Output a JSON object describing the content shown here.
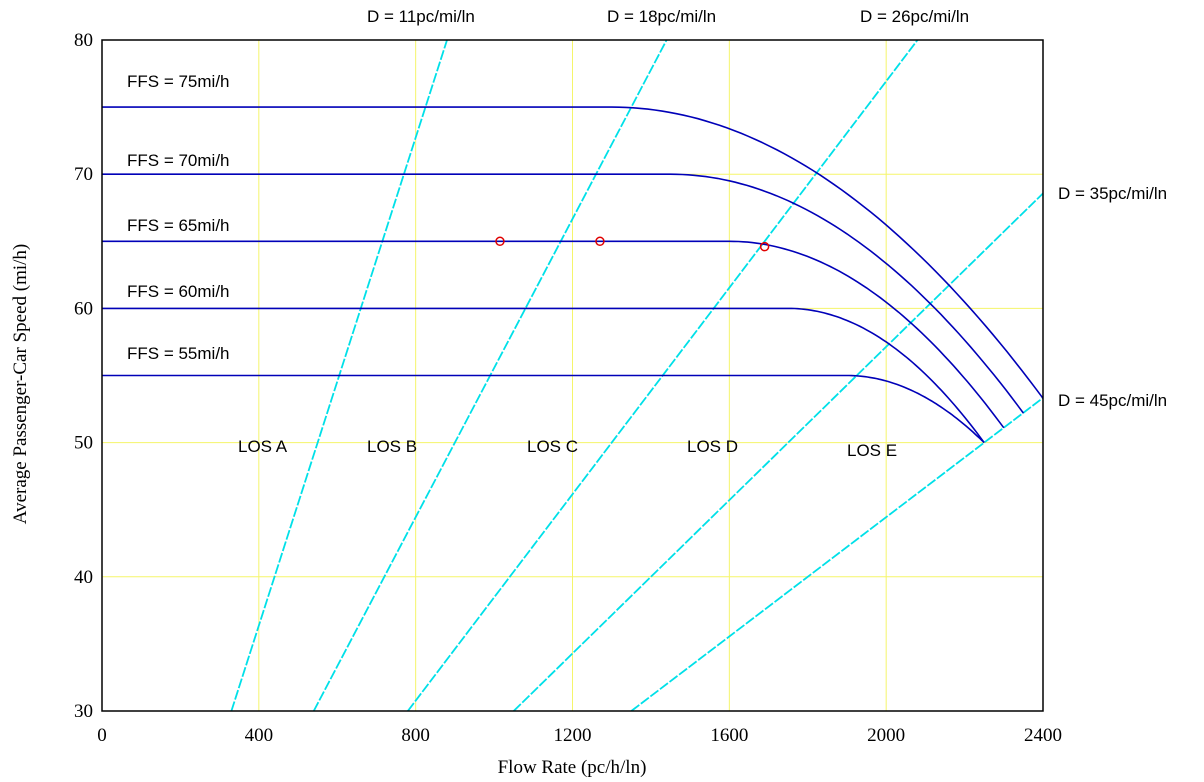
{
  "chart_data": {
    "type": "line",
    "title": "",
    "xlabel": "Flow Rate (pc/h/ln)",
    "ylabel": "Average Passenger-Car Speed (mi/h)",
    "xlim": [
      0,
      2400
    ],
    "ylim": [
      30,
      80
    ],
    "x_ticks": [
      "0",
      "400",
      "800",
      "1200",
      "1600",
      "2000",
      "2400"
    ],
    "y_ticks": [
      "30",
      "40",
      "50",
      "60",
      "70",
      "80"
    ],
    "grid": true,
    "colors": {
      "speed_flow": "#0000b8",
      "density": "#00e0e8",
      "grid": "#f5f56a",
      "points": "#e00000"
    },
    "speed_flow_curves": [
      {
        "name": "FFS = 75mi/h",
        "ffs": 75,
        "breakpoint": 1300,
        "capacity": 2400,
        "speed_at_capacity": 53.3
      },
      {
        "name": "FFS = 70mi/h",
        "ffs": 70,
        "breakpoint": 1450,
        "capacity": 2350,
        "speed_at_capacity": 52.2
      },
      {
        "name": "FFS = 65mi/h",
        "ffs": 65,
        "breakpoint": 1600,
        "capacity": 2300,
        "speed_at_capacity": 51.1
      },
      {
        "name": "FFS = 60mi/h",
        "ffs": 60,
        "breakpoint": 1750,
        "capacity": 2250,
        "speed_at_capacity": 50.0
      },
      {
        "name": "FFS = 55mi/h",
        "ffs": 55,
        "breakpoint": 1900,
        "capacity": 2250,
        "speed_at_capacity": 50.0
      }
    ],
    "density_lines": [
      {
        "name": "D = 11pc/mi/ln",
        "density": 11
      },
      {
        "name": "D = 18pc/mi/ln",
        "density": 18
      },
      {
        "name": "D = 26pc/mi/ln",
        "density": 26
      },
      {
        "name": "D = 35pc/mi/ln",
        "density": 35
      },
      {
        "name": "D = 45pc/mi/ln",
        "density": 45
      }
    ],
    "los_labels": [
      "LOS A",
      "LOS B",
      "LOS C",
      "LOS D",
      "LOS E"
    ],
    "points": [
      {
        "x": 1015,
        "y": 65
      },
      {
        "x": 1270,
        "y": 65
      },
      {
        "x": 1690,
        "y": 64.6
      }
    ]
  }
}
